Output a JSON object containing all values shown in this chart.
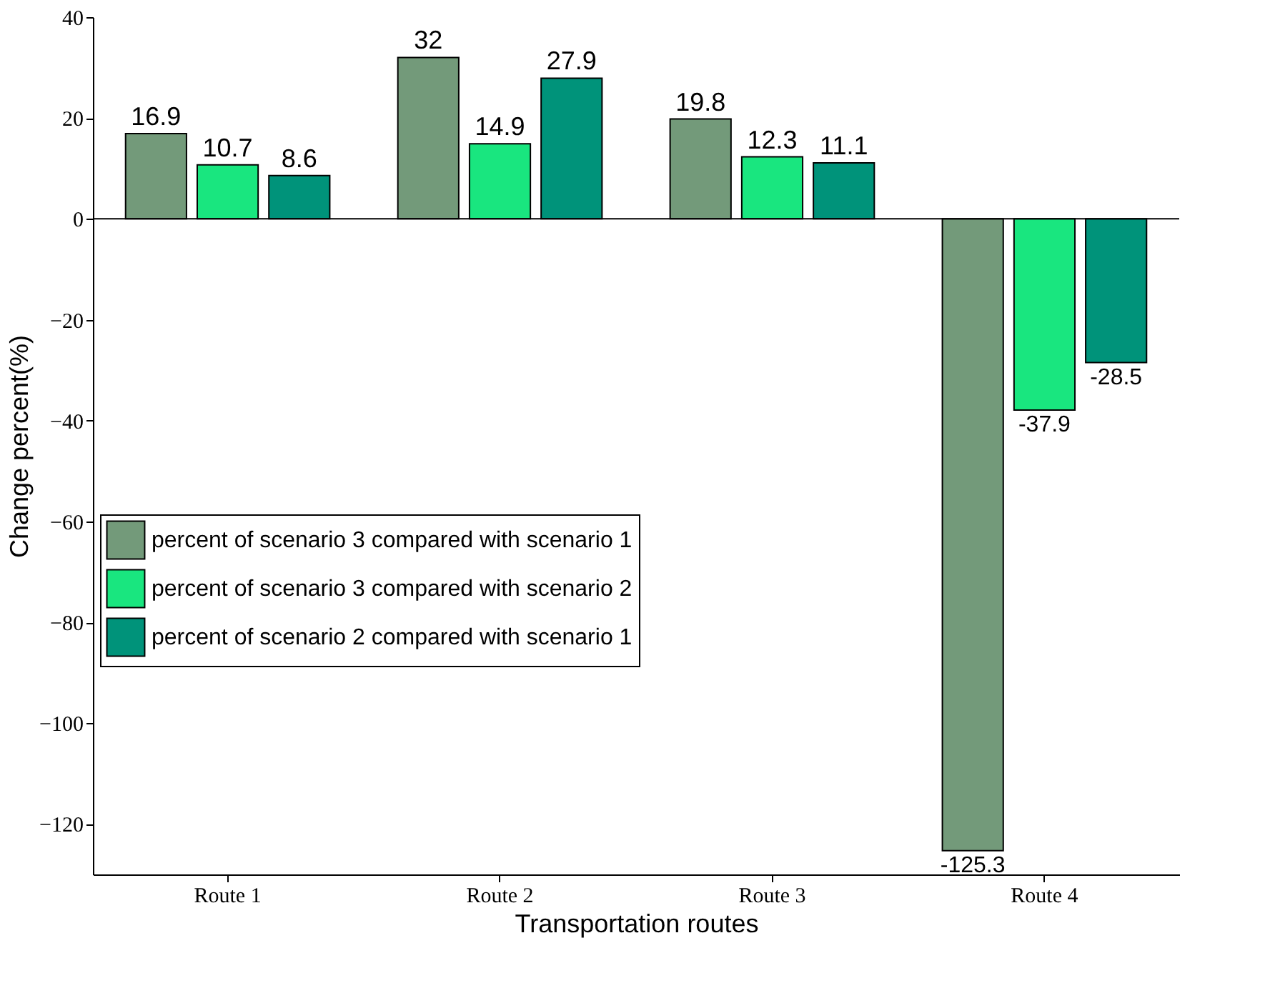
{
  "chart_data": {
    "type": "bar",
    "xlabel": "Transportation routes",
    "ylabel": "Change percent(%)",
    "categories": [
      "Route 1",
      "Route 2",
      "Route 3",
      "Route 4"
    ],
    "series": [
      {
        "name": "percent of scenario 3 compared with scenario 1",
        "color": "#739a7a",
        "values": [
          16.9,
          32,
          19.8,
          -125.3
        ]
      },
      {
        "name": "percent of scenario 3 compared with scenario 2",
        "color": "#19e67f",
        "values": [
          10.7,
          14.9,
          12.3,
          -37.9
        ]
      },
      {
        "name": "percent of scenario 2 compared with scenario 1",
        "color": "#00937a",
        "values": [
          8.6,
          27.9,
          11.1,
          -28.5
        ]
      }
    ],
    "ylim": [
      -130,
      40
    ],
    "yticks": [
      -120,
      -100,
      -80,
      -60,
      -40,
      -20,
      0,
      20,
      40
    ],
    "ref_lines": [
      {
        "axis": "y",
        "value": 0,
        "color": "#000000"
      }
    ],
    "data_labels": true,
    "legend": "left",
    "grid": false
  }
}
